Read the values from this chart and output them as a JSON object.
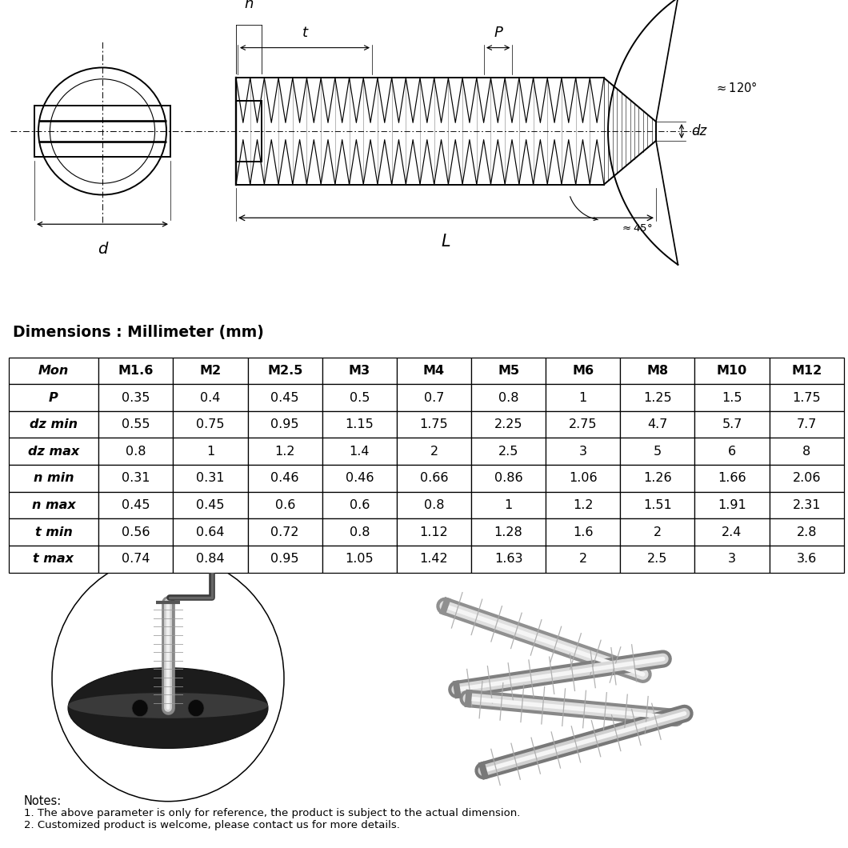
{
  "dim_title": "Dimensions : Millimeter (mm)",
  "headers": [
    "Mon",
    "M1.6",
    "M2",
    "M2.5",
    "M3",
    "M4",
    "M5",
    "M6",
    "M8",
    "M10",
    "M12"
  ],
  "rows": [
    [
      "P",
      "0.35",
      "0.4",
      "0.45",
      "0.5",
      "0.7",
      "0.8",
      "1",
      "1.25",
      "1.5",
      "1.75"
    ],
    [
      "dz min",
      "0.55",
      "0.75",
      "0.95",
      "1.15",
      "1.75",
      "2.25",
      "2.75",
      "4.7",
      "5.7",
      "7.7"
    ],
    [
      "dz max",
      "0.8",
      "1",
      "1.2",
      "1.4",
      "2",
      "2.5",
      "3",
      "5",
      "6",
      "8"
    ],
    [
      "n min",
      "0.31",
      "0.31",
      "0.46",
      "0.46",
      "0.66",
      "0.86",
      "1.06",
      "1.26",
      "1.66",
      "2.06"
    ],
    [
      "n max",
      "0.45",
      "0.45",
      "0.6",
      "0.6",
      "0.8",
      "1",
      "1.2",
      "1.51",
      "1.91",
      "2.31"
    ],
    [
      "t min",
      "0.56",
      "0.64",
      "0.72",
      "0.8",
      "1.12",
      "1.28",
      "1.6",
      "2",
      "2.4",
      "2.8"
    ],
    [
      "t max",
      "0.74",
      "0.84",
      "0.95",
      "1.05",
      "1.42",
      "1.63",
      "2",
      "2.5",
      "3",
      "3.6"
    ]
  ],
  "notes": [
    "Notes:",
    "1. The above parameter is only for reference, the product is subject to the actual dimension.",
    "2. Customized product is welcome, please contact us for more details."
  ]
}
